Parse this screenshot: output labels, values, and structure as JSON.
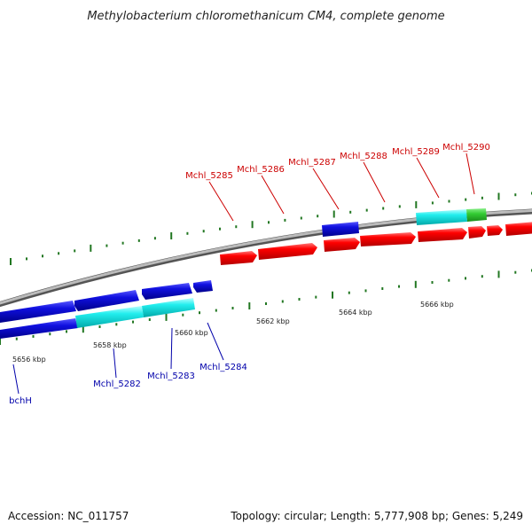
{
  "title": "Methylobacterium chloromethanicum CM4, complete genome",
  "footer": {
    "accession": "Accession: NC_011757",
    "summary": "Topology: circular; Length: 5,777,908 bp; Genes: 5,249"
  },
  "colors": {
    "forward_gene": "#ff0000",
    "reverse_gene": "#0000ee",
    "highlight_gene": "#00ffff",
    "rna_gene": "#33cc33",
    "backbone": "#888888",
    "tick": "#227722",
    "forward_label": "#cc0000",
    "reverse_label": "#0000aa"
  },
  "ruler_labels": [
    "5656 kbp",
    "5658 kbp",
    "5660 kbp",
    "5662 kbp",
    "5664 kbp",
    "5666 kbp"
  ],
  "forward_gene_labels": [
    "Mchl_5285",
    "Mchl_5286",
    "Mchl_5287",
    "Mchl_5288",
    "Mchl_5289",
    "Mchl_5290"
  ],
  "reverse_gene_labels": [
    "bchH",
    "Mchl_5282",
    "Mchl_5283",
    "Mchl_5284"
  ]
}
